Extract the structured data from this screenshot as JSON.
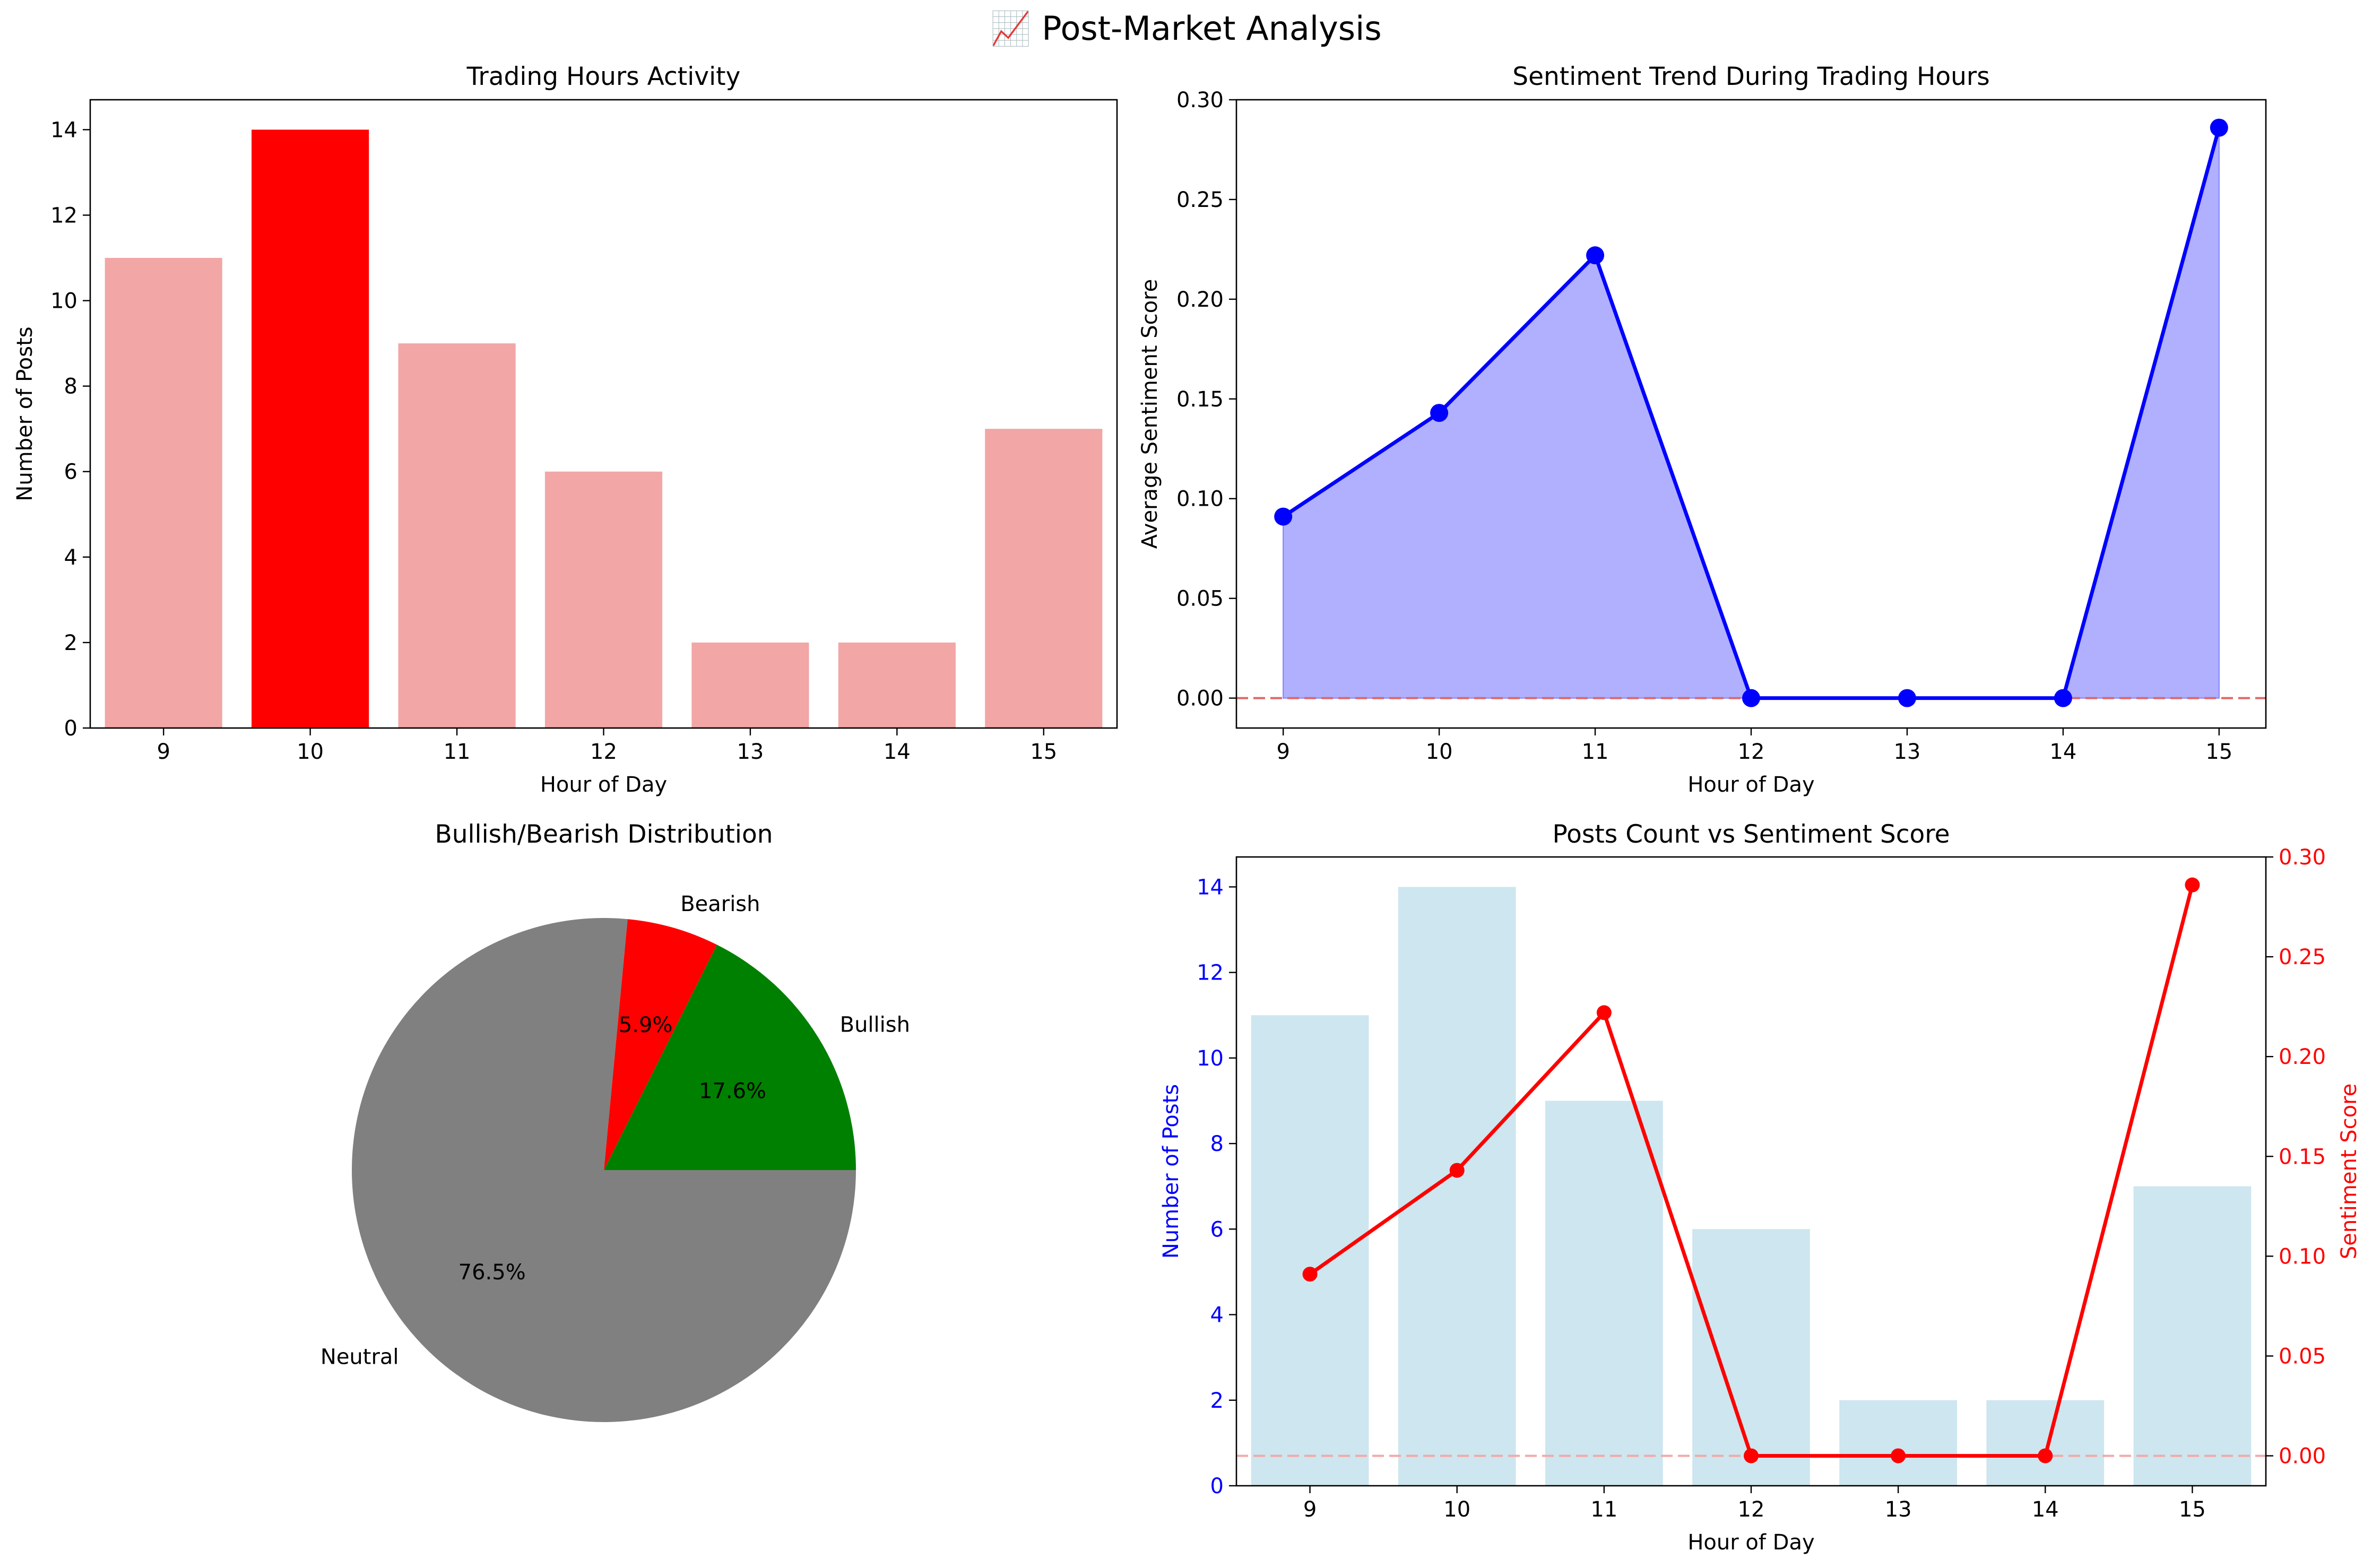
{
  "figure": {
    "suptitle": "📈 Post-Market Analysis"
  },
  "colors": {
    "bar_light": "#f2a6a6",
    "bar_peak": "#ff0000",
    "line_blue": "#0000ff",
    "fill_blue": "#b0b0ff",
    "pie_neutral": "#808080",
    "pie_bearish": "#ff0000",
    "pie_bullish": "#008000",
    "bar_lightblue": "#cde6ef",
    "line_red": "#ff0000",
    "ref_line": "#e06666"
  },
  "chart_data": [
    {
      "type": "bar",
      "title": "Trading Hours Activity",
      "xlabel": "Hour of Day",
      "ylabel": "Number of Posts",
      "categories": [
        "9",
        "10",
        "11",
        "12",
        "13",
        "14",
        "15"
      ],
      "values": [
        11,
        14,
        9,
        6,
        2,
        2,
        7
      ],
      "highlight_index": 1,
      "ylim": [
        0,
        14.7
      ],
      "yticks": [
        "0",
        "2",
        "4",
        "6",
        "8",
        "10",
        "12",
        "14"
      ]
    },
    {
      "type": "area",
      "title": "Sentiment Trend During Trading Hours",
      "xlabel": "Hour of Day",
      "ylabel": "Average Sentiment Score",
      "x": [
        9,
        10,
        11,
        12,
        13,
        14,
        15
      ],
      "values": [
        0.091,
        0.143,
        0.222,
        0.0,
        0.0,
        0.0,
        0.286
      ],
      "xlim": [
        8.7,
        15.3
      ],
      "ylim": [
        -0.015,
        0.3
      ],
      "xticks": [
        "9",
        "10",
        "11",
        "12",
        "13",
        "14",
        "15"
      ],
      "yticks": [
        "0.00",
        "0.05",
        "0.10",
        "0.15",
        "0.20",
        "0.25",
        "0.30"
      ],
      "reference_line": 0
    },
    {
      "type": "pie",
      "title": "Bullish/Bearish Distribution",
      "labels": [
        "Bullish",
        "Bearish",
        "Neutral"
      ],
      "values": [
        17.6,
        5.9,
        76.5
      ],
      "pct_labels": [
        "17.6%",
        "5.9%",
        "76.5%"
      ]
    },
    {
      "type": "bar",
      "title": "Posts Count vs Sentiment Score",
      "xlabel": "Hour of Day",
      "ylabel": "Number of Posts",
      "y2label": "Sentiment Score",
      "categories": [
        "9",
        "10",
        "11",
        "12",
        "13",
        "14",
        "15"
      ],
      "values": [
        11,
        14,
        9,
        6,
        2,
        2,
        7
      ],
      "ylim": [
        0,
        14.7
      ],
      "yticks": [
        "0",
        "2",
        "4",
        "6",
        "8",
        "10",
        "12",
        "14"
      ],
      "series": [
        {
          "values": [
            0.091,
            0.143,
            0.222,
            0.0,
            0.0,
            0.0,
            0.286
          ]
        }
      ],
      "y2lim": [
        -0.015,
        0.3
      ],
      "y2ticks": [
        "0.00",
        "0.05",
        "0.10",
        "0.15",
        "0.20",
        "0.25",
        "0.30"
      ],
      "reference_line": 0
    }
  ]
}
